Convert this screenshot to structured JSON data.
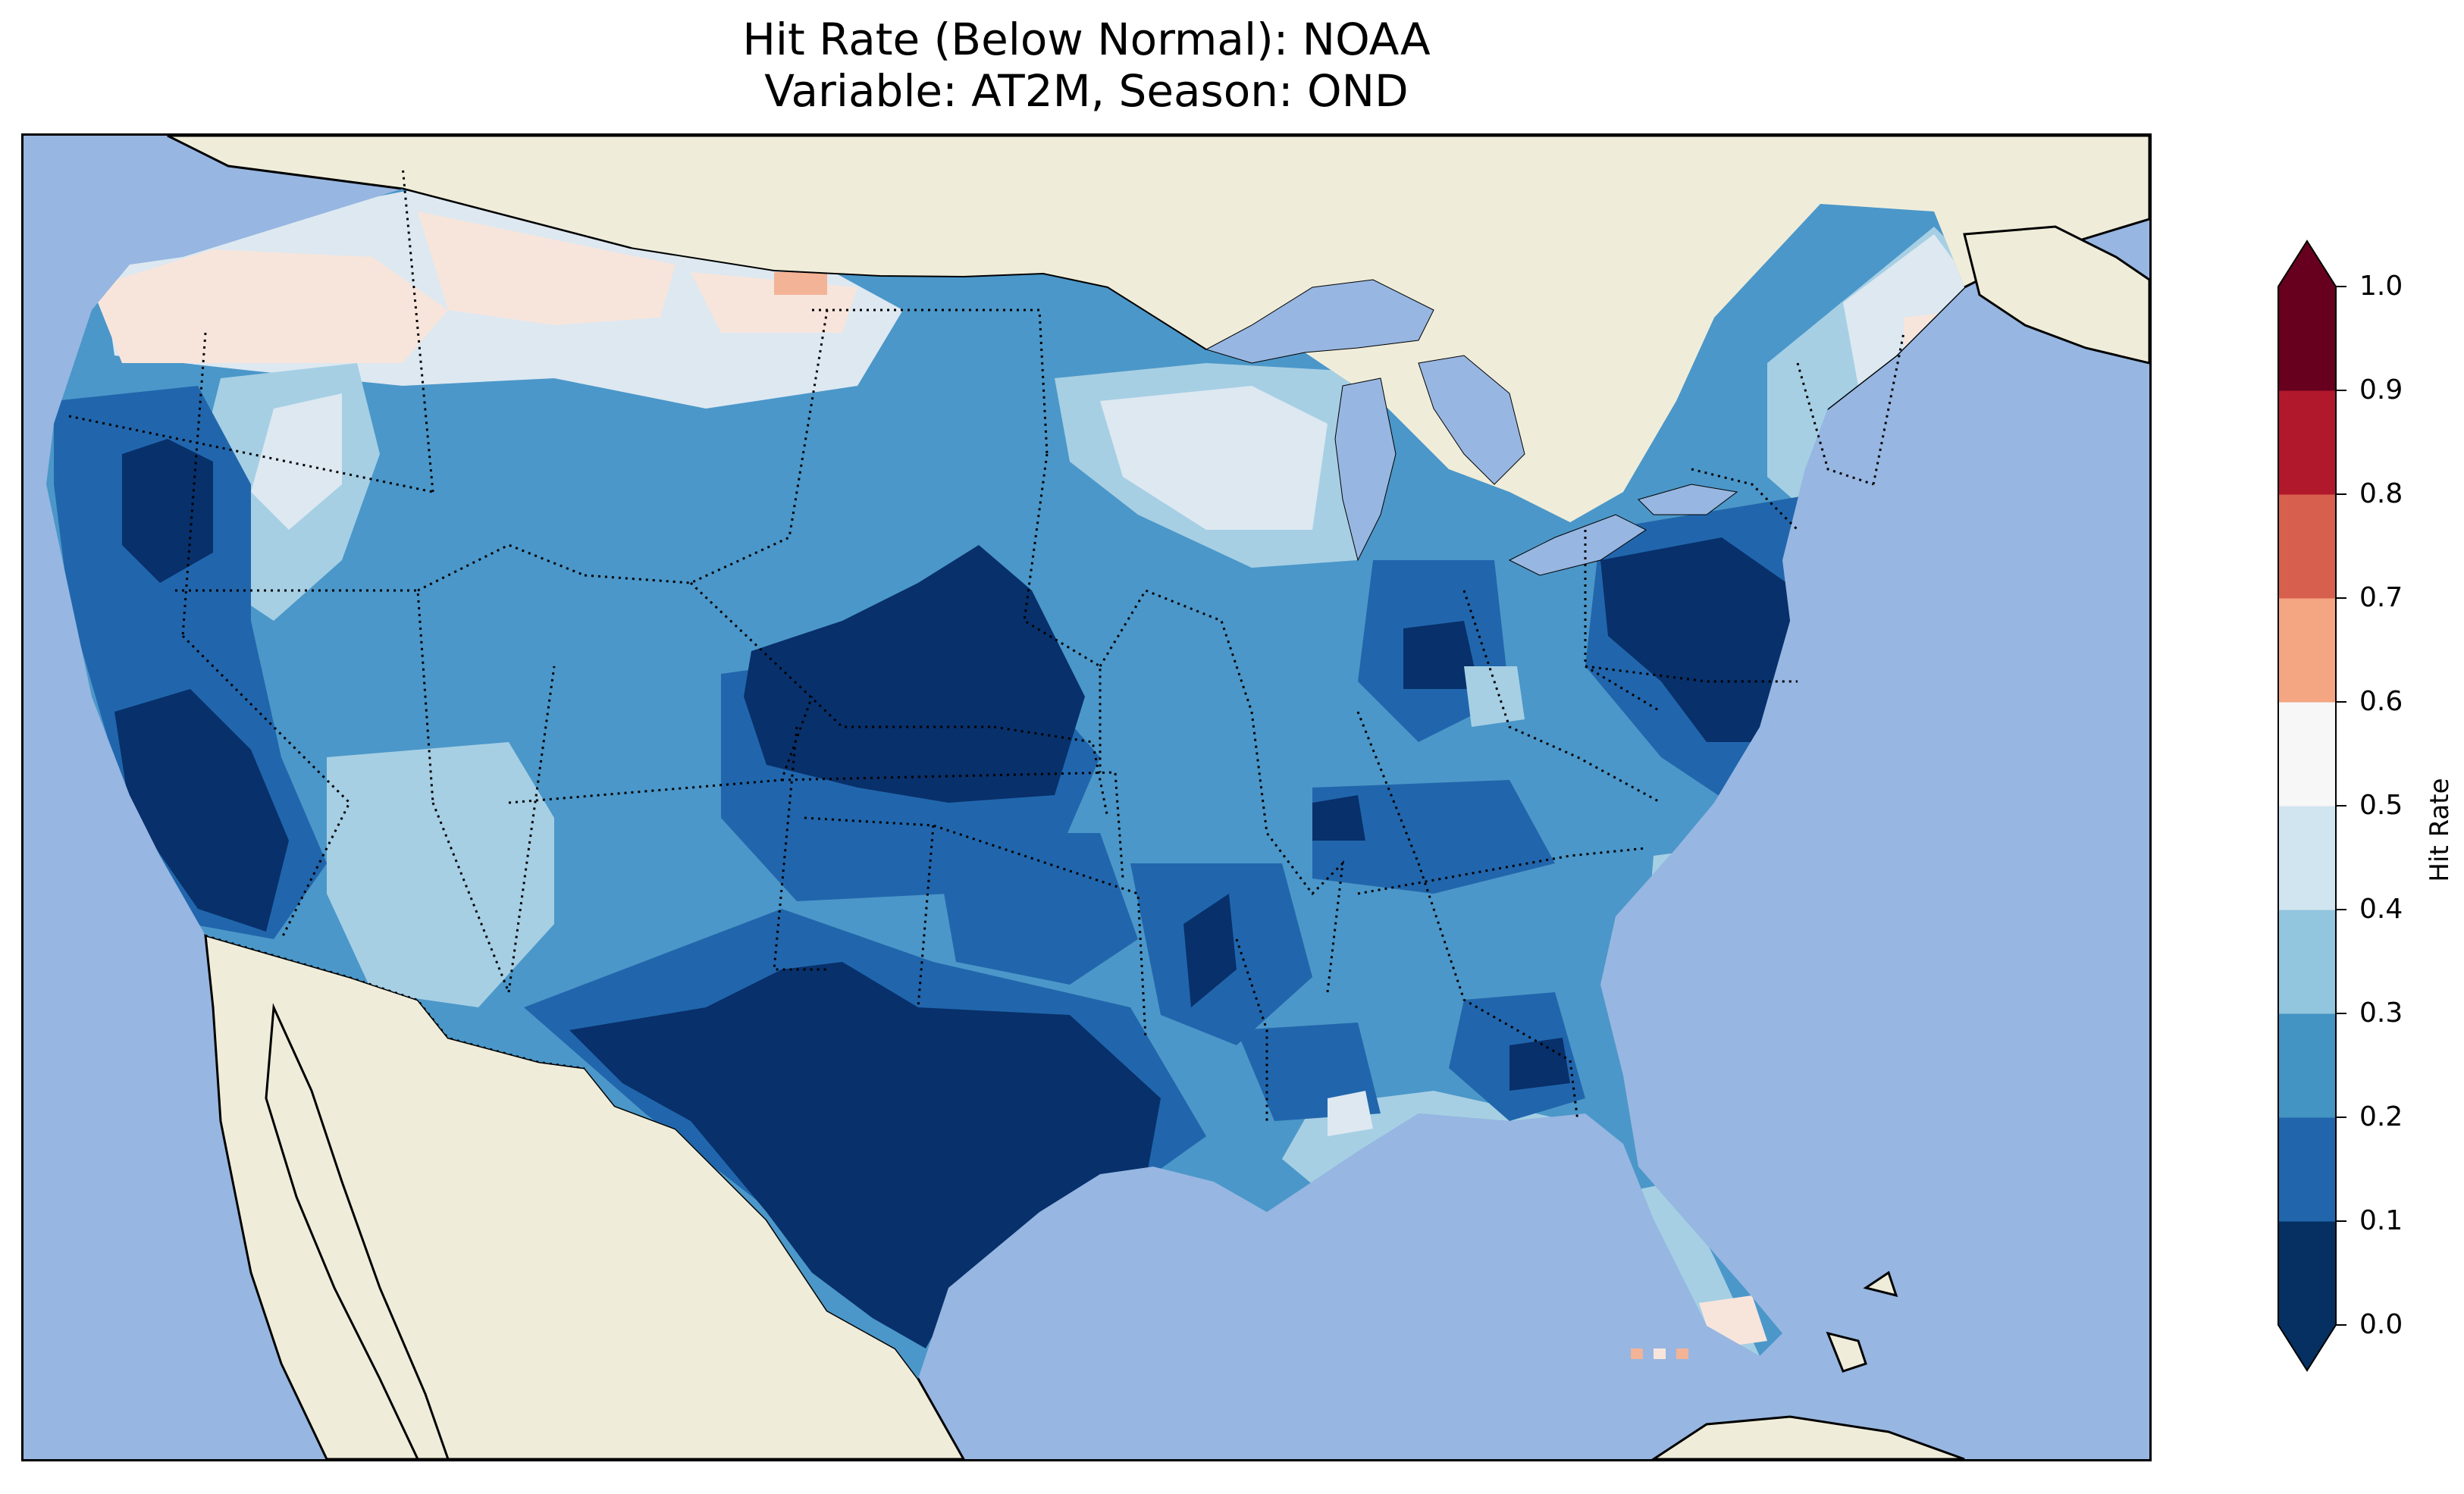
{
  "title": {
    "line1": "Hit Rate (Below Normal): NOAA",
    "line2": "Variable: AT2M, Season: OND"
  },
  "colorbar": {
    "label": "Hit Rate",
    "ticks": [
      "0.0",
      "0.1",
      "0.2",
      "0.3",
      "0.4",
      "0.5",
      "0.6",
      "0.7",
      "0.8",
      "0.9",
      "1.0"
    ],
    "bins": [
      {
        "range": "0.0-0.1",
        "color": "#053061"
      },
      {
        "range": "0.1-0.2",
        "color": "#2166ac"
      },
      {
        "range": "0.2-0.3",
        "color": "#4393c3"
      },
      {
        "range": "0.3-0.4",
        "color": "#92c5de"
      },
      {
        "range": "0.4-0.5",
        "color": "#d1e5f0"
      },
      {
        "range": "0.5-0.6",
        "color": "#f7f7f7"
      },
      {
        "range": "0.6-0.7",
        "color": "#f4a582"
      },
      {
        "range": "0.7-0.8",
        "color": "#d6604d"
      },
      {
        "range": "0.8-0.9",
        "color": "#b2182b"
      },
      {
        "range": "0.9-1.0",
        "color": "#67001f"
      }
    ],
    "extend": "both"
  },
  "map": {
    "ocean_color": "#97b6e1",
    "land_color": "#efedda",
    "region": "Contiguous United States",
    "field_color_scale": {
      "0.05": "#08306b",
      "0.15": "#2166ac",
      "0.25": "#4b97c9",
      "0.35": "#a6cfe4",
      "0.45": "#dde8f1",
      "0.55": "#f7e5dc",
      "0.65": "#f3b396"
    }
  }
}
